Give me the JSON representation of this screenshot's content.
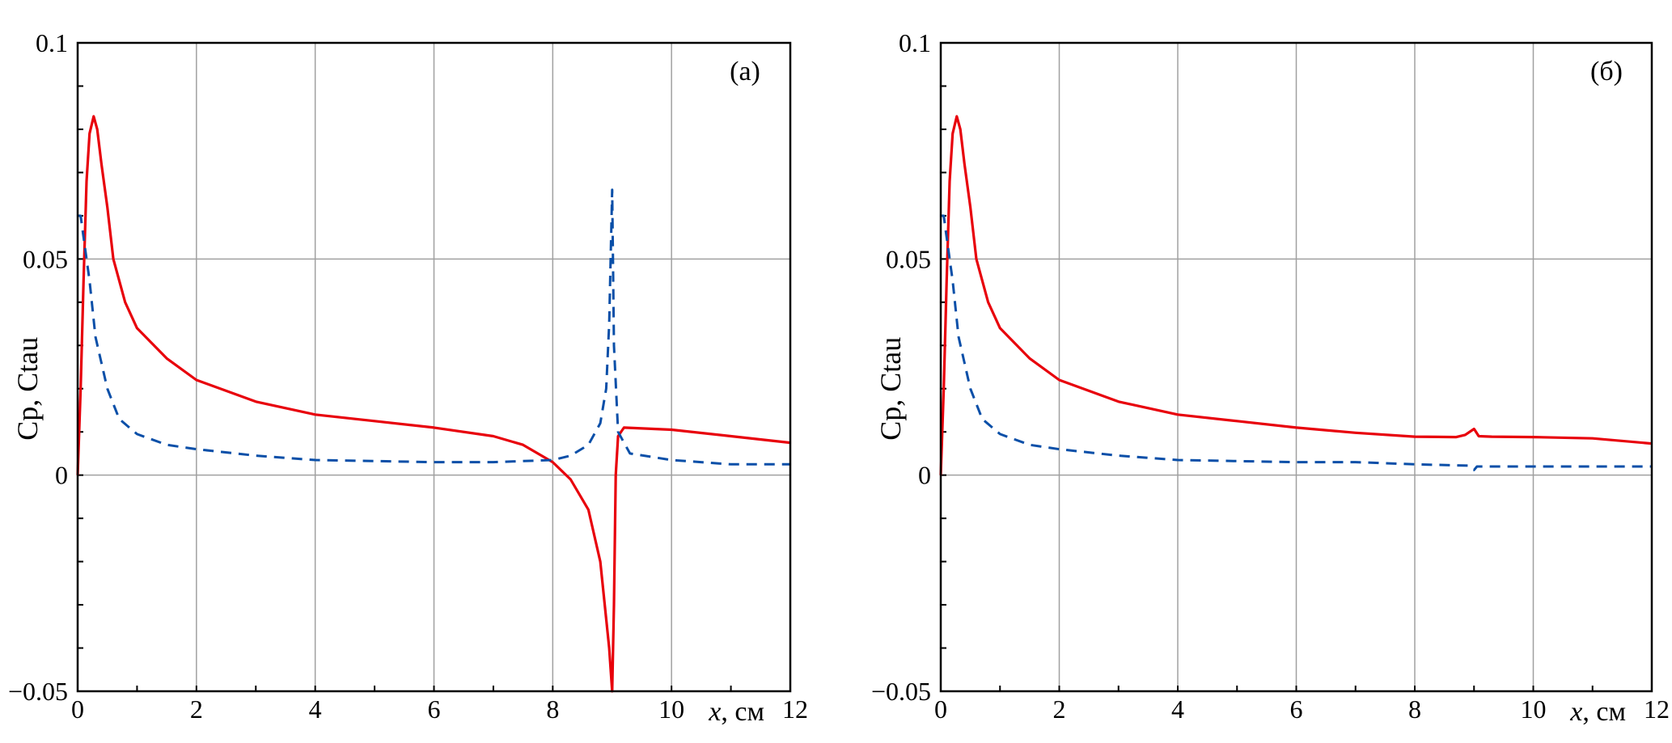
{
  "chart_data": [
    {
      "type": "line",
      "panel_label": "(a)",
      "xlabel_var": "x",
      "xlabel_unit": ", см",
      "ylabel": "Cp, Ctau",
      "xlim": [
        0,
        12
      ],
      "ylim": [
        -0.05,
        0.1
      ],
      "xticks": [
        0,
        2,
        4,
        6,
        8,
        10,
        12
      ],
      "xtick_labels": [
        "0",
        "2",
        "4",
        "6",
        "8",
        "10",
        "12"
      ],
      "yticks": [
        -0.05,
        0,
        0.05,
        0.1
      ],
      "ytick_labels": [
        "−0.05",
        "0",
        "0.05",
        "0.1"
      ],
      "grid": true,
      "series": [
        {
          "name": "red-solid",
          "color": "#e8000b",
          "dash": "solid",
          "x": [
            0,
            0.05,
            0.1,
            0.15,
            0.2,
            0.27,
            0.33,
            0.4,
            0.5,
            0.6,
            0.8,
            1,
            1.5,
            2,
            3,
            4,
            5,
            6,
            7,
            7.5,
            8,
            8.3,
            8.6,
            8.8,
            8.95,
            9.0,
            9.03,
            9.06,
            9.1,
            9.2,
            10,
            11,
            12
          ],
          "y": [
            0,
            0.02,
            0.045,
            0.068,
            0.079,
            0.083,
            0.08,
            0.072,
            0.062,
            0.05,
            0.04,
            0.034,
            0.027,
            0.022,
            0.017,
            0.014,
            0.0125,
            0.011,
            0.009,
            0.007,
            0.003,
            -0.001,
            -0.008,
            -0.02,
            -0.04,
            -0.05,
            -0.03,
            0,
            0.009,
            0.011,
            0.0105,
            0.009,
            0.0075
          ]
        },
        {
          "name": "blue-dashed",
          "color": "#0a4fa8",
          "dash": "dashed",
          "x": [
            0,
            0.05,
            0.1,
            0.2,
            0.3,
            0.5,
            0.7,
            1,
            1.5,
            2,
            3,
            4,
            6,
            7,
            8,
            8.3,
            8.6,
            8.8,
            8.9,
            8.95,
            9.0,
            9.03,
            9.1,
            9.3,
            10,
            11,
            12
          ],
          "y": [
            0.06,
            0.06,
            0.055,
            0.045,
            0.032,
            0.02,
            0.013,
            0.0095,
            0.007,
            0.006,
            0.0045,
            0.0035,
            0.003,
            0.003,
            0.0035,
            0.0045,
            0.007,
            0.012,
            0.02,
            0.035,
            0.066,
            0.03,
            0.01,
            0.005,
            0.0035,
            0.0025,
            0.0025
          ]
        }
      ]
    },
    {
      "type": "line",
      "panel_label": "(б)",
      "xlabel_var": "x",
      "xlabel_unit": ", см",
      "ylabel": "Cp, Ctau",
      "xlim": [
        0,
        12
      ],
      "ylim": [
        -0.05,
        0.1
      ],
      "xticks": [
        0,
        2,
        4,
        6,
        8,
        10,
        12
      ],
      "xtick_labels": [
        "0",
        "2",
        "4",
        "6",
        "8",
        "10",
        "12"
      ],
      "yticks": [
        -0.05,
        0,
        0.05,
        0.1
      ],
      "ytick_labels": [
        "−0.05",
        "0",
        "0.05",
        "0.1"
      ],
      "grid": true,
      "series": [
        {
          "name": "red-solid",
          "color": "#e8000b",
          "dash": "solid",
          "x": [
            0,
            0.05,
            0.1,
            0.15,
            0.2,
            0.27,
            0.33,
            0.4,
            0.5,
            0.6,
            0.8,
            1,
            1.5,
            2,
            3,
            4,
            5,
            6,
            7,
            8,
            8.7,
            8.85,
            9.0,
            9.08,
            9.3,
            10,
            11,
            12
          ],
          "y": [
            0,
            0.02,
            0.045,
            0.068,
            0.079,
            0.083,
            0.08,
            0.072,
            0.062,
            0.05,
            0.04,
            0.034,
            0.027,
            0.022,
            0.017,
            0.014,
            0.0125,
            0.011,
            0.0098,
            0.0089,
            0.0088,
            0.0093,
            0.0107,
            0.009,
            0.0089,
            0.0088,
            0.0085,
            0.0073
          ]
        },
        {
          "name": "blue-dashed",
          "color": "#0a4fa8",
          "dash": "dashed",
          "x": [
            0,
            0.05,
            0.1,
            0.2,
            0.3,
            0.5,
            0.7,
            1,
            1.5,
            2,
            3,
            4,
            6,
            7,
            8,
            8.9,
            9.0,
            9.05,
            10,
            11,
            12
          ],
          "y": [
            0.06,
            0.06,
            0.055,
            0.045,
            0.032,
            0.02,
            0.013,
            0.0095,
            0.007,
            0.006,
            0.0045,
            0.0035,
            0.003,
            0.003,
            0.0025,
            0.0022,
            0.0012,
            0.002,
            0.002,
            0.002,
            0.002
          ]
        }
      ]
    }
  ]
}
